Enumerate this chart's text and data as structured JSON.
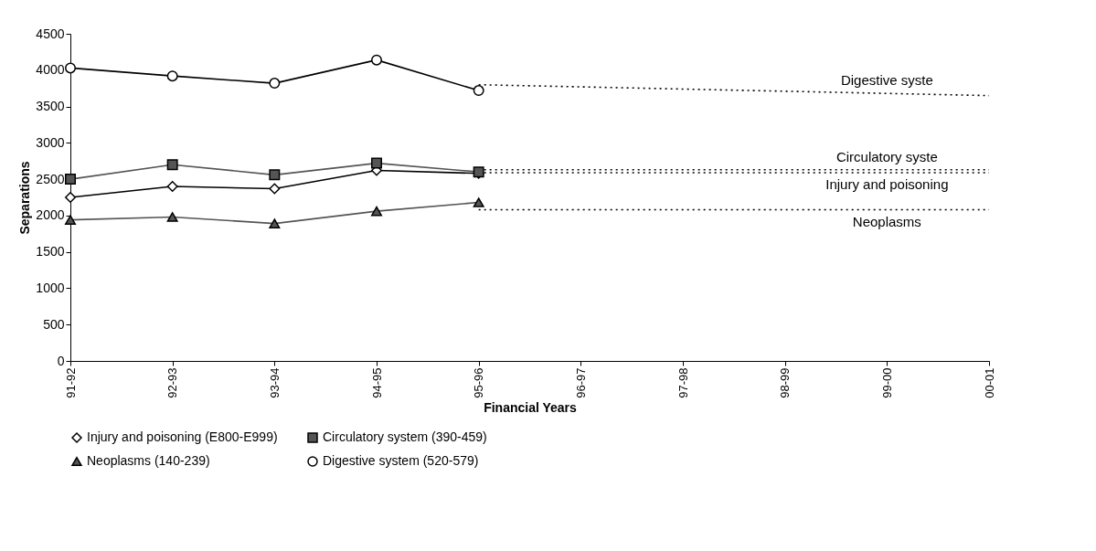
{
  "chart_data": {
    "type": "line",
    "xlabel": "Financial Years",
    "ylabel": "Separations",
    "categories": [
      "91-92",
      "92-93",
      "93-94",
      "94-95",
      "95-96",
      "96-97",
      "97-98",
      "98-99",
      "99-00",
      "00-01"
    ],
    "ylim": [
      0,
      4500
    ],
    "yticks": [
      0,
      500,
      1000,
      1500,
      2000,
      2500,
      3000,
      3500,
      4000,
      4500
    ],
    "series": [
      {
        "name": "Injury and poisoning (E800-E999)",
        "color": "#000000",
        "marker": "diamond",
        "values": [
          2250,
          2400,
          2370,
          2620,
          2580,
          null,
          null,
          null,
          null,
          null
        ]
      },
      {
        "name": "Circulatory system (390-459)",
        "color": "#555555",
        "marker": "square",
        "values": [
          2500,
          2700,
          2560,
          2720,
          2600,
          null,
          null,
          null,
          null,
          null
        ]
      },
      {
        "name": "Neoplasms (140-239)",
        "color": "#555555",
        "marker": "triangle",
        "values": [
          1940,
          1980,
          1890,
          2060,
          2180,
          null,
          null,
          null,
          null,
          null
        ]
      },
      {
        "name": "Digestive system (520-579)",
        "color": "#000000",
        "marker": "circle",
        "values": [
          4030,
          3920,
          3820,
          4140,
          3720,
          null,
          null,
          null,
          null,
          null
        ]
      },
      {
        "name": "Digestive syste",
        "color": "#000000",
        "line_style": "dotted",
        "marker": "none",
        "values": [
          null,
          null,
          null,
          null,
          3800,
          3770,
          3740,
          3710,
          3680,
          3650
        ]
      },
      {
        "name": "Circulatory syste",
        "color": "#000000",
        "line_style": "dotted",
        "marker": "none",
        "values": [
          null,
          null,
          null,
          null,
          2630,
          2630,
          2630,
          2630,
          2630,
          2630
        ]
      },
      {
        "name": "Injury and poisoning",
        "color": "#000000",
        "line_style": "dotted",
        "marker": "none",
        "values": [
          null,
          null,
          null,
          null,
          2590,
          2590,
          2590,
          2590,
          2590,
          2590
        ]
      },
      {
        "name": "Neoplasms",
        "color": "#000000",
        "line_style": "dotted",
        "marker": "none",
        "values": [
          null,
          null,
          null,
          null,
          2080,
          2080,
          2080,
          2080,
          2080,
          2080
        ]
      }
    ],
    "grid": false,
    "legend": "bottom"
  }
}
